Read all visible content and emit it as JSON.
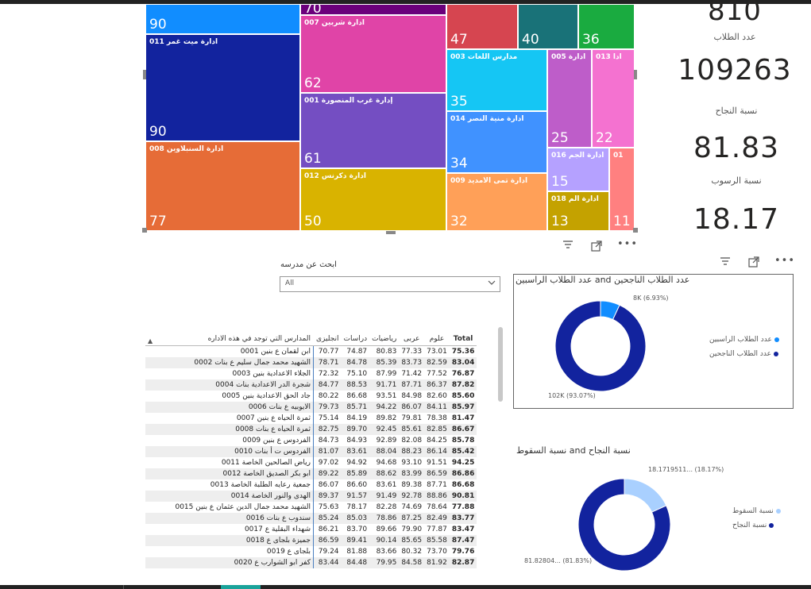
{
  "treemap": {
    "tiles": [
      {
        "label": "",
        "value": "90",
        "color": "#118dff"
      },
      {
        "label": "ادارة ميت غمر 011",
        "value": "90",
        "color": "#12239e"
      },
      {
        "label": "ادارة السنبلاوين 008",
        "value": "77",
        "color": "#e66c37"
      },
      {
        "label": "",
        "value": "70",
        "color": "#6b007b"
      },
      {
        "label": "ادارة شربين 007",
        "value": "62",
        "color": "#e044a7"
      },
      {
        "label": "إدارة غرب المنصورة 001",
        "value": "61",
        "color": "#744ec2"
      },
      {
        "label": "ادارة دكرنس 012",
        "value": "50",
        "color": "#d9b300"
      },
      {
        "label": "",
        "value": "47",
        "color": "#d64550"
      },
      {
        "label": "",
        "value": "40",
        "color": "#197278"
      },
      {
        "label": "",
        "value": "36",
        "color": "#1aab40"
      },
      {
        "label": "مدارس اللغات 003",
        "value": "35",
        "color": "#15c6f4"
      },
      {
        "label": "ادارة منية النصر 014",
        "value": "34",
        "color": "#4092ff"
      },
      {
        "label": "ادارة تمى الأمديد 009",
        "value": "32",
        "color": "#ffa058"
      },
      {
        "label": "ادارة 005",
        "value": "25",
        "color": "#be5dc9"
      },
      {
        "label": "ادا 013",
        "value": "22",
        "color": "#f472d0"
      },
      {
        "label": "ادارة الجم 016",
        "value": "15",
        "color": "#b5a1ff"
      },
      {
        "label": "ادارة الم 018",
        "value": "13",
        "color": "#c4a200"
      },
      {
        "label": "01",
        "value": "11",
        "color": "#ff8080"
      }
    ]
  },
  "cards": {
    "top_value": "810",
    "students_label": "عدد الطلاب",
    "students_value": "109263",
    "pass_label": "نسبة النجاح",
    "pass_value": "81.83",
    "fail_label": "نسبة الرسوب",
    "fail_value": "18.17"
  },
  "slicer": {
    "title": "ابحث عن مدرسه",
    "value": "All"
  },
  "table": {
    "headers": {
      "name": "المدارس التي توجد في هذه الاداره",
      "english": "انجليزى",
      "studies": "دراسات",
      "math": "رياضيات",
      "arabic": "عربى",
      "science": "علوم",
      "total": "Total"
    },
    "rows": [
      {
        "name": "ابن لقمان ع بنين 0001",
        "english": "70.77",
        "studies": "74.87",
        "math": "80.83",
        "arabic": "77.33",
        "science": "73.01",
        "total": "75.36"
      },
      {
        "name": "الشهيد محمد جمال سليم ع بنات 0002",
        "english": "78.71",
        "studies": "84.78",
        "math": "85.39",
        "arabic": "83.73",
        "science": "82.59",
        "total": "83.04"
      },
      {
        "name": "الجلاء الاعدادية بنين 0003",
        "english": "72.32",
        "studies": "75.10",
        "math": "87.99",
        "arabic": "71.42",
        "science": "77.52",
        "total": "76.87"
      },
      {
        "name": "شجرة الدر الاعدادية بنات 0004",
        "english": "84.77",
        "studies": "88.53",
        "math": "91.71",
        "arabic": "87.71",
        "science": "86.37",
        "total": "87.82"
      },
      {
        "name": "جاد الحق الاعدادية بنين 0005",
        "english": "80.22",
        "studies": "86.68",
        "math": "93.51",
        "arabic": "84.98",
        "science": "82.60",
        "total": "85.60"
      },
      {
        "name": "الايوبيه ع بنات 0006",
        "english": "79.73",
        "studies": "85.71",
        "math": "94.22",
        "arabic": "86.07",
        "science": "84.11",
        "total": "85.97"
      },
      {
        "name": "ثمرة الحياه ع بنين 0007",
        "english": "75.14",
        "studies": "84.19",
        "math": "89.82",
        "arabic": "79.81",
        "science": "78.38",
        "total": "81.47"
      },
      {
        "name": "ثمرة الحياه ع بنات 0008",
        "english": "82.75",
        "studies": "89.70",
        "math": "92.45",
        "arabic": "85.61",
        "science": "82.85",
        "total": "86.67"
      },
      {
        "name": "الفردوس ع بنين 0009",
        "english": "84.73",
        "studies": "84.93",
        "math": "92.89",
        "arabic": "82.08",
        "science": "84.25",
        "total": "85.78"
      },
      {
        "name": "الفردوس ت أ بنات 0010",
        "english": "81.07",
        "studies": "83.61",
        "math": "88.04",
        "arabic": "88.23",
        "science": "86.14",
        "total": "85.42"
      },
      {
        "name": "رياض الصالحين الخاصة 0011",
        "english": "97.02",
        "studies": "94.92",
        "math": "94.68",
        "arabic": "93.10",
        "science": "91.51",
        "total": "94.25"
      },
      {
        "name": "ابو بكر الصديق الخاصة 0012",
        "english": "89.22",
        "studies": "85.89",
        "math": "88.62",
        "arabic": "83.99",
        "science": "86.59",
        "total": "86.86"
      },
      {
        "name": "جمعية رعايه الطلبة الخاصة 0013",
        "english": "86.07",
        "studies": "86.60",
        "math": "83.61",
        "arabic": "89.38",
        "science": "87.71",
        "total": "86.68"
      },
      {
        "name": "الهدى والنور الخاصة 0014",
        "english": "89.37",
        "studies": "91.57",
        "math": "91.49",
        "arabic": "92.78",
        "science": "88.86",
        "total": "90.81"
      },
      {
        "name": "الشهيد محمد جمال الدين عثمان ع بنين 0015",
        "english": "75.63",
        "studies": "78.17",
        "math": "82.28",
        "arabic": "74.69",
        "science": "78.64",
        "total": "77.88"
      },
      {
        "name": "سندوب ع بنات 0016",
        "english": "85.24",
        "studies": "85.03",
        "math": "78.86",
        "arabic": "87.25",
        "science": "82.49",
        "total": "83.77"
      },
      {
        "name": "شهداء البقلية ع 0017",
        "english": "86.21",
        "studies": "83.70",
        "math": "89.66",
        "arabic": "79.90",
        "science": "77.87",
        "total": "83.47"
      },
      {
        "name": "جميزة بلجاى ع 0018",
        "english": "86.59",
        "studies": "89.41",
        "math": "90.14",
        "arabic": "85.65",
        "science": "85.58",
        "total": "87.47"
      },
      {
        "name": "بلجاى ع 0019",
        "english": "79.24",
        "studies": "81.88",
        "math": "83.66",
        "arabic": "80.32",
        "science": "73.70",
        "total": "79.76"
      },
      {
        "name": "كفر ابو الشوارب ع 0020",
        "english": "83.44",
        "studies": "84.48",
        "math": "79.95",
        "arabic": "84.58",
        "science": "81.92",
        "total": "82.87"
      }
    ]
  },
  "donut1": {
    "title": "عدد الطلاب الناجحين and عدد الطلاب الراسبين",
    "legend": [
      "عدد الطلاب الراسبين",
      "عدد الطلاب الناجحين"
    ],
    "label_small": "8K (6.93%)",
    "label_large": "102K (93.07%)",
    "colors": [
      "#118dff",
      "#12239e"
    ]
  },
  "donut2": {
    "title": "نسبة النجاح and نسبة السقوط",
    "legend": [
      "نسبة السقوط",
      "نسبة النجاح"
    ],
    "label_small": "18.1719511... (18.17%)",
    "label_large": "81.82804... (81.83%)",
    "colors": [
      "#a9d0ff",
      "#12239e"
    ]
  },
  "chart_data": [
    {
      "type": "pie",
      "title": "عدد الطلاب الناجحين and عدد الطلاب الراسبين",
      "categories": [
        "عدد الطلاب الراسبين",
        "عدد الطلاب الناجحين"
      ],
      "values": [
        6.93,
        93.07
      ]
    },
    {
      "type": "pie",
      "title": "نسبة النجاح and نسبة السقوط",
      "categories": [
        "نسبة السقوط",
        "نسبة النجاح"
      ],
      "values": [
        18.17,
        81.83
      ]
    }
  ],
  "icons": [
    "filter-icon",
    "focus-mode-icon",
    "more-options-icon"
  ]
}
